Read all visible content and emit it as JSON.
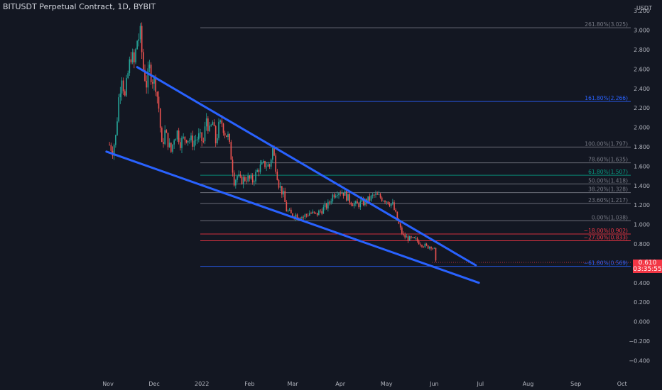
{
  "header": {
    "title": "BITUSDT Perpetual Contract, 1D, BYBIT"
  },
  "price_tag": {
    "price": "0.610",
    "countdown": "03:35:55",
    "color": "#f23645"
  },
  "colors": {
    "up": "#26a69a",
    "down": "#ef5350",
    "trendline": "#2962ff",
    "background": "#131722"
  },
  "chart_data": {
    "type": "candlestick",
    "symbol": "BITUSDT Perpetual Contract",
    "interval": "1D",
    "exchange": "BYBIT",
    "y_axis": {
      "unit": "USDT",
      "ticks": [
        "3.200",
        "3.000",
        "2.800",
        "2.600",
        "2.400",
        "2.200",
        "2.000",
        "1.800",
        "1.600",
        "1.400",
        "1.200",
        "1.000",
        "0.800",
        "0.600",
        "0.400",
        "0.200",
        "0.000",
        "−0.200",
        "−0.400"
      ],
      "range": [
        -0.45,
        3.2
      ]
    },
    "x_axis": {
      "ticks": [
        "Nov",
        "Dec",
        "2022",
        "Feb",
        "Mar",
        "Apr",
        "May",
        "Jun",
        "Jul",
        "Aug",
        "Sep",
        "Oct"
      ]
    },
    "price_path": [
      [
        "2021-11-02",
        1.82
      ],
      [
        "2021-11-04",
        1.76
      ],
      [
        "2021-11-06",
        1.9
      ],
      [
        "2021-11-08",
        2.3
      ],
      [
        "2021-11-10",
        2.55
      ],
      [
        "2021-11-12",
        2.3
      ],
      [
        "2021-11-14",
        2.55
      ],
      [
        "2021-11-16",
        2.75
      ],
      [
        "2021-11-18",
        2.65
      ],
      [
        "2021-11-20",
        2.9
      ],
      [
        "2021-11-22",
        2.95
      ],
      [
        "2021-11-24",
        2.6
      ],
      [
        "2021-11-26",
        2.45
      ],
      [
        "2021-11-28",
        2.6
      ],
      [
        "2021-11-30",
        2.5
      ],
      [
        "2021-12-02",
        2.45
      ],
      [
        "2021-12-04",
        2.2
      ],
      [
        "2021-12-06",
        1.8
      ],
      [
        "2021-12-08",
        1.95
      ],
      [
        "2021-12-10",
        1.85
      ],
      [
        "2021-12-12",
        1.75
      ],
      [
        "2021-12-14",
        1.9
      ],
      [
        "2021-12-16",
        1.95
      ],
      [
        "2021-12-18",
        1.85
      ],
      [
        "2021-12-22",
        1.9
      ],
      [
        "2021-12-26",
        1.85
      ],
      [
        "2021-12-30",
        1.9
      ],
      [
        "2022-01-02",
        1.85
      ],
      [
        "2022-01-04",
        2.1
      ],
      [
        "2022-01-06",
        1.95
      ],
      [
        "2022-01-08",
        2.05
      ],
      [
        "2022-01-10",
        1.85
      ],
      [
        "2022-01-12",
        2.0
      ],
      [
        "2022-01-14",
        2.05
      ],
      [
        "2022-01-16",
        1.95
      ],
      [
        "2022-01-18",
        1.9
      ],
      [
        "2022-01-20",
        1.7
      ],
      [
        "2022-01-22",
        1.45
      ],
      [
        "2022-01-24",
        1.5
      ],
      [
        "2022-01-26",
        1.45
      ],
      [
        "2022-01-30",
        1.48
      ],
      [
        "2022-02-03",
        1.45
      ],
      [
        "2022-02-07",
        1.58
      ],
      [
        "2022-02-11",
        1.62
      ],
      [
        "2022-02-14",
        1.6
      ],
      [
        "2022-02-16",
        1.78
      ],
      [
        "2022-02-18",
        1.6
      ],
      [
        "2022-02-20",
        1.42
      ],
      [
        "2022-02-23",
        1.3
      ],
      [
        "2022-02-25",
        1.15
      ],
      [
        "2022-02-28",
        1.1
      ],
      [
        "2022-03-04",
        1.1
      ],
      [
        "2022-03-08",
        1.08
      ],
      [
        "2022-03-12",
        1.12
      ],
      [
        "2022-03-16",
        1.1
      ],
      [
        "2022-03-20",
        1.15
      ],
      [
        "2022-03-24",
        1.2
      ],
      [
        "2022-03-27",
        1.3
      ],
      [
        "2022-03-30",
        1.35
      ],
      [
        "2022-04-03",
        1.33
      ],
      [
        "2022-04-07",
        1.25
      ],
      [
        "2022-04-11",
        1.2
      ],
      [
        "2022-04-15",
        1.22
      ],
      [
        "2022-04-19",
        1.25
      ],
      [
        "2022-04-23",
        1.3
      ],
      [
        "2022-04-27",
        1.28
      ],
      [
        "2022-05-01",
        1.25
      ],
      [
        "2022-05-05",
        1.2
      ],
      [
        "2022-05-08",
        1.05
      ],
      [
        "2022-05-10",
        0.95
      ],
      [
        "2022-05-12",
        0.88
      ],
      [
        "2022-05-16",
        0.85
      ],
      [
        "2022-05-20",
        0.84
      ],
      [
        "2022-05-24",
        0.8
      ],
      [
        "2022-05-27",
        0.77
      ],
      [
        "2022-05-30",
        0.78
      ],
      [
        "2022-06-01",
        0.74
      ],
      [
        "2022-06-02",
        0.61
      ]
    ],
    "fibonacci": [
      {
        "label": "261.80%(3.025)",
        "value": 3.025,
        "color": "#787b86"
      },
      {
        "label": "161.80%(2.266)",
        "value": 2.266,
        "color": "#2962ff"
      },
      {
        "label": "100.00%(1.797)",
        "value": 1.797,
        "color": "#787b86"
      },
      {
        "label": "78.60%(1.635)",
        "value": 1.635,
        "color": "#787b86"
      },
      {
        "label": "61.80%(1.507)",
        "value": 1.507,
        "color": "#089981"
      },
      {
        "label": "50.00%(1.418)",
        "value": 1.418,
        "color": "#787b86"
      },
      {
        "label": "38.20%(1.328)",
        "value": 1.328,
        "color": "#787b86"
      },
      {
        "label": "23.60%(1.217)",
        "value": 1.217,
        "color": "#787b86"
      },
      {
        "label": "0.00%(1.038)",
        "value": 1.038,
        "color": "#787b86"
      },
      {
        "label": "−18.00%(0.902)",
        "value": 0.902,
        "color": "#f23645"
      },
      {
        "label": "−27.00%(0.833)",
        "value": 0.833,
        "color": "#f23645"
      },
      {
        "label": "−61.80%(0.569)",
        "value": 0.569,
        "color": "#2962ff"
      }
    ],
    "trendlines": [
      {
        "name": "upper",
        "from": [
          "2021-11-20",
          2.62
        ],
        "to": [
          "2022-06-28",
          0.58
        ]
      },
      {
        "name": "lower",
        "from": [
          "2021-10-31",
          1.75
        ],
        "to": [
          "2022-06-30",
          0.4
        ]
      }
    ],
    "last_price": 0.61
  }
}
